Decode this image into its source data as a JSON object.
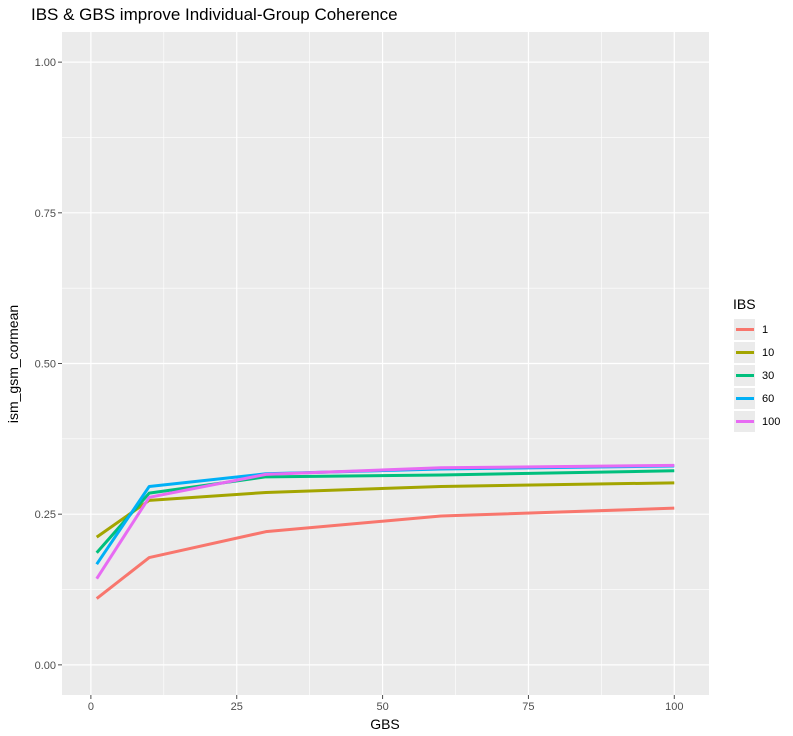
{
  "chart_data": {
    "type": "line",
    "title": "IBS & GBS improve Individual-Group Coherence",
    "xlabel": "GBS",
    "ylabel": "ism_gsm_cormean",
    "xlim": [
      -4.95,
      105.95
    ],
    "ylim": [
      -0.05,
      1.05
    ],
    "x_ticks": [
      0,
      25,
      50,
      75,
      100
    ],
    "y_ticks": [
      "0.00",
      "0.25",
      "0.50",
      "0.75",
      "1.00"
    ],
    "grid": true,
    "legend_title": "IBS",
    "legend_position": "right",
    "x": [
      1,
      10,
      30,
      60,
      100
    ],
    "series": [
      {
        "name": "1",
        "color": "#F8766D",
        "values": [
          0.11,
          0.178,
          0.221,
          0.247,
          0.26
        ]
      },
      {
        "name": "10",
        "color": "#A3A500",
        "values": [
          0.212,
          0.273,
          0.286,
          0.296,
          0.302
        ]
      },
      {
        "name": "30",
        "color": "#00BF7D",
        "values": [
          0.186,
          0.285,
          0.312,
          0.315,
          0.322
        ]
      },
      {
        "name": "60",
        "color": "#00B0F6",
        "values": [
          0.167,
          0.296,
          0.317,
          0.325,
          0.33
        ]
      },
      {
        "name": "100",
        "color": "#E76BF3",
        "values": [
          0.143,
          0.278,
          0.316,
          0.327,
          0.331
        ]
      }
    ]
  }
}
